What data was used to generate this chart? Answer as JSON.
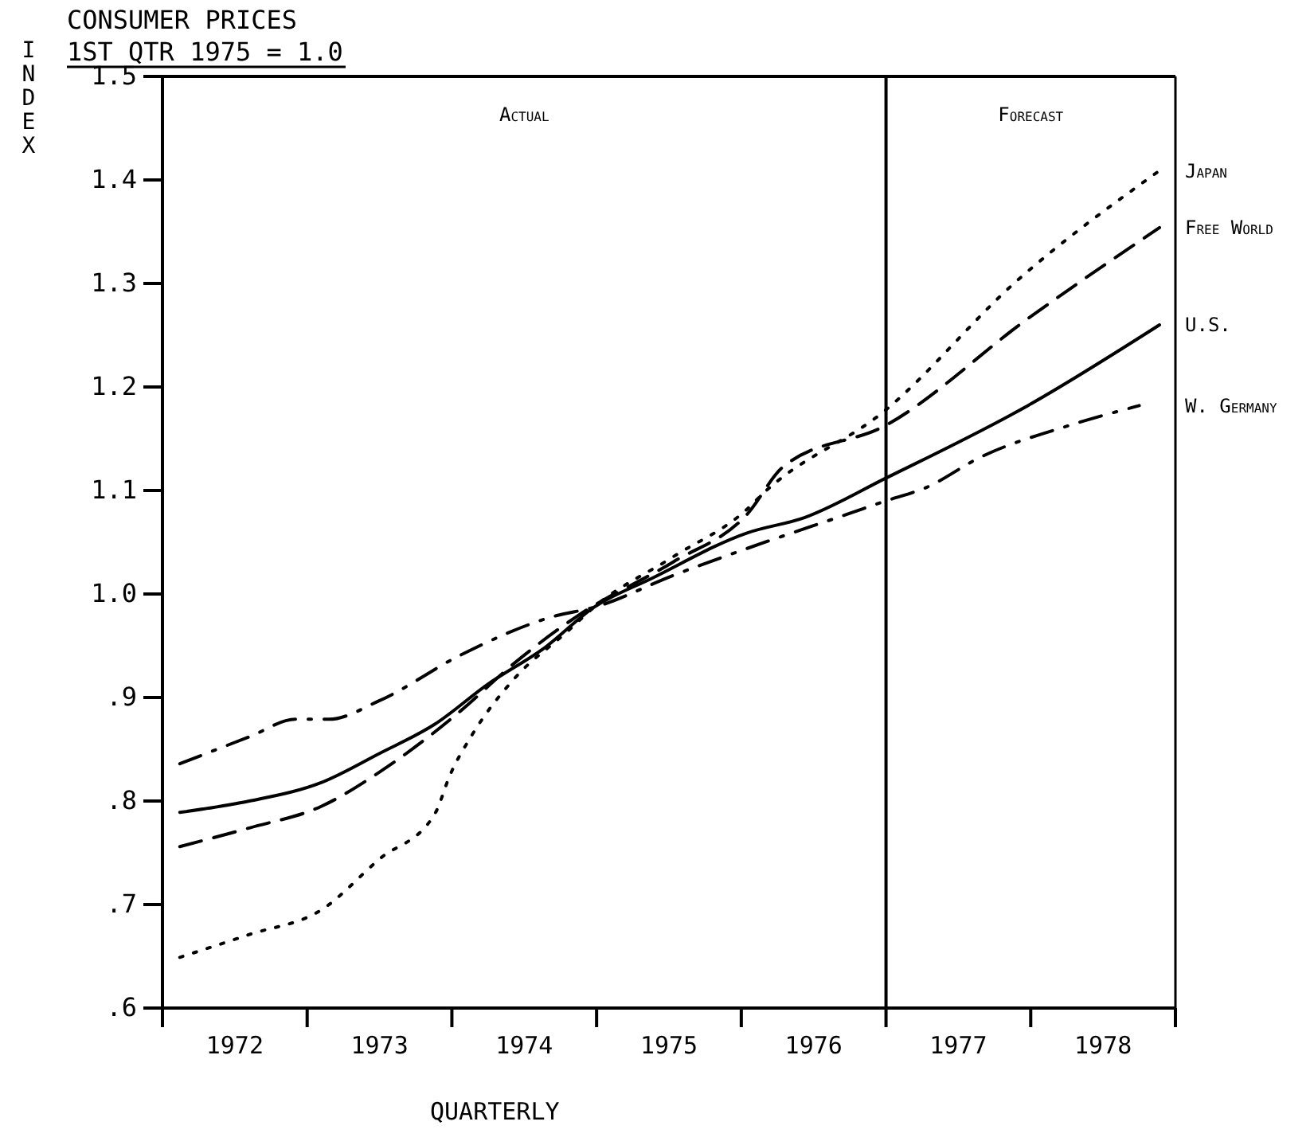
{
  "chart_data": {
    "type": "line",
    "title": "CONSUMER PRICES",
    "subtitle": "1ST QTR 1975 = 1.0",
    "xlabel": "QUARTERLY",
    "ylabel": "INDEX",
    "annotations": [
      "Actual",
      "Forecast"
    ],
    "xlim": [
      1972,
      1979
    ],
    "xticks": [
      {
        "value": 1972,
        "label": null
      },
      {
        "value": 1972.5,
        "label": "1972"
      },
      {
        "value": 1973,
        "label": null
      },
      {
        "value": 1973.5,
        "label": "1973"
      },
      {
        "value": 1974,
        "label": null
      },
      {
        "value": 1974.5,
        "label": "1974"
      },
      {
        "value": 1975,
        "label": null
      },
      {
        "value": 1975.5,
        "label": "1975"
      },
      {
        "value": 1976,
        "label": null
      },
      {
        "value": 1976.5,
        "label": "1976"
      },
      {
        "value": 1977,
        "label": null
      },
      {
        "value": 1977.5,
        "label": "1977"
      },
      {
        "value": 1978,
        "label": null
      },
      {
        "value": 1978.5,
        "label": "1978"
      },
      {
        "value": 1979,
        "label": null
      }
    ],
    "ylim": [
      0.6,
      1.5
    ],
    "yticks": [
      {
        "value": 0.6,
        "label": ".6"
      },
      {
        "value": 0.7,
        "label": ".7"
      },
      {
        "value": 0.8,
        "label": ".8"
      },
      {
        "value": 0.9,
        "label": ".9"
      },
      {
        "value": 1.0,
        "label": "1.0"
      },
      1.1,
      1.2,
      1.3,
      1.4,
      1.5
    ],
    "ref_lines": [
      {
        "axis": "x",
        "value": 1977,
        "color": "#000000"
      }
    ],
    "grid": false,
    "legend": false,
    "marker": "none",
    "series": [
      {
        "name": "Japan",
        "color": "#000000",
        "line_style": "dotted",
        "x": [
          1972.12,
          1972.6,
          1973.1,
          1973.5,
          1973.88,
          1973.99,
          1974.14,
          1974.43,
          1974.8,
          1974.98,
          1975.53,
          1976.04,
          1976.15,
          1977,
          1977.9,
          1978.89
        ],
        "values": [
          0.649,
          0.671,
          0.695,
          0.744,
          0.787,
          0.826,
          0.864,
          0.918,
          0.964,
          0.987,
          1.036,
          1.082,
          1.097,
          1.178,
          1.302,
          1.409
        ]
      },
      {
        "name": "Free World",
        "color": "#000000",
        "line_style": "dashed",
        "x": [
          1972.12,
          1972.6,
          1973.1,
          1973.5,
          1974.06,
          1974.43,
          1974.87,
          1975.53,
          1976.04,
          1976.29,
          1977,
          1977.98,
          1978.89
        ],
        "values": [
          0.756,
          0.774,
          0.795,
          0.828,
          0.887,
          0.933,
          0.979,
          1.031,
          1.077,
          1.123,
          1.163,
          1.266,
          1.354
        ]
      },
      {
        "name": "U.S.",
        "color": "#000000",
        "line_style": "solid",
        "x": [
          1972.12,
          1972.6,
          1973.1,
          1973.5,
          1973.88,
          1974.25,
          1974.65,
          1974.98,
          1975.38,
          1976.04,
          1976.44,
          1977,
          1977.98,
          1978.89
        ],
        "values": [
          0.789,
          0.8,
          0.818,
          0.846,
          0.874,
          0.913,
          0.949,
          0.987,
          1.015,
          1.059,
          1.074,
          1.112,
          1.182,
          1.26
        ]
      },
      {
        "name": "W. Germany",
        "color": "#000000",
        "line_style": "dashdot",
        "x": [
          1972.12,
          1972.6,
          1972.92,
          1973.15,
          1973.5,
          1974.06,
          1974.72,
          1974.98,
          1975.53,
          1976.04,
          1976.73,
          1977,
          1977.28,
          1977.65,
          1978.27,
          1978.75
        ],
        "values": [
          0.836,
          0.862,
          0.879,
          0.879,
          0.897,
          0.941,
          0.979,
          0.987,
          1.018,
          1.044,
          1.077,
          1.09,
          1.103,
          1.132,
          1.163,
          1.182
        ]
      }
    ]
  }
}
